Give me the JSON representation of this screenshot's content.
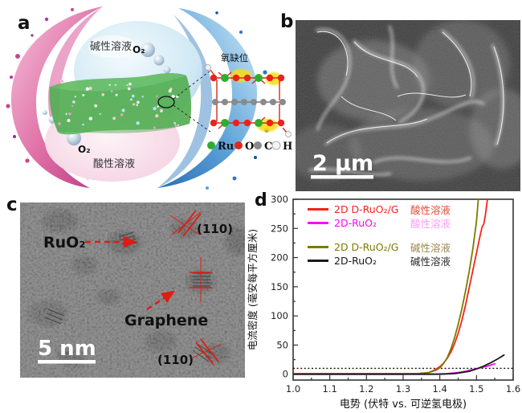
{
  "figure": {
    "panel_a": {
      "label": "a",
      "alkaline_solution": "碱性溶液",
      "acidic_solution": "酸性溶液",
      "o2_top": "O₂",
      "o2_bottom": "O₂",
      "inset_title": "氧缺位",
      "atom_legend": [
        {
          "symbol": "Ru",
          "color": "#2eae2e"
        },
        {
          "symbol": "O",
          "color": "#e8231c"
        },
        {
          "symbol": "C",
          "color": "#8a8a8a"
        },
        {
          "symbol": "H",
          "color": "#f5f5f5"
        }
      ]
    },
    "panel_b": {
      "label": "b",
      "scale_bar_text": "2 μm"
    },
    "panel_c": {
      "label": "c",
      "ruo2_label": "RuO₂",
      "graphene_label": "Graphene",
      "plane_top": "(110)",
      "plane_bottom": "(110)",
      "scale_bar_text": "5 nm"
    },
    "panel_d": {
      "label": "d"
    }
  },
  "chart_data": {
    "type": "line",
    "title": "",
    "xlabel": "电势 (伏特 vs. 可逆氢电极)",
    "ylabel": "电流密度 (毫安每平方厘米)",
    "xlim": [
      1.0,
      1.6
    ],
    "ylim": [
      -10,
      300
    ],
    "xticks": [
      1.0,
      1.1,
      1.2,
      1.3,
      1.4,
      1.5,
      1.6
    ],
    "yticks": [
      0,
      50,
      100,
      150,
      200,
      250,
      300
    ],
    "x_minor_step": 0.05,
    "y_minor_step": 25,
    "grid": false,
    "legend_position": "top-left",
    "reference_line_y": 10,
    "series": [
      {
        "name": "2D D-RuO₂/G",
        "solution": "酸性溶液",
        "color": "#f7231a",
        "name_color": "#f7231a",
        "solution_color": "#e84a3a",
        "x": [
          1.0,
          1.05,
          1.1,
          1.15,
          1.2,
          1.25,
          1.3,
          1.34,
          1.37,
          1.385,
          1.4,
          1.41,
          1.42,
          1.43,
          1.44,
          1.45,
          1.46,
          1.47,
          1.48,
          1.49,
          1.5,
          1.51,
          1.515,
          1.52,
          1.524,
          1.53
        ],
        "y": [
          1,
          1,
          1,
          1,
          1,
          1,
          1,
          1,
          3,
          7,
          13,
          19,
          27,
          38,
          52,
          70,
          92,
          118,
          148,
          178,
          208,
          238,
          252,
          258,
          272,
          300
        ]
      },
      {
        "name": "2D-RuO₂",
        "solution": "酸性溶液",
        "color": "#ff00ff",
        "name_color": "#ff00ff",
        "solution_color": "#fb9df1",
        "x": [
          1.0,
          1.1,
          1.2,
          1.3,
          1.38,
          1.42,
          1.45,
          1.47,
          1.49,
          1.51,
          1.53,
          1.55
        ],
        "y": [
          0,
          0,
          0,
          0,
          0,
          1,
          3,
          5,
          8,
          11,
          14,
          18
        ]
      },
      {
        "name": "2D D-RuO₂/G",
        "solution": "碱性溶液",
        "color": "#7b7b00",
        "name_color": "#7b7b00",
        "solution_color": "#9a8a52",
        "x": [
          1.0,
          1.1,
          1.2,
          1.3,
          1.34,
          1.37,
          1.39,
          1.4,
          1.41,
          1.42,
          1.43,
          1.44,
          1.45,
          1.46,
          1.47,
          1.48,
          1.49,
          1.5,
          1.505
        ],
        "y": [
          0,
          0,
          0,
          0,
          1,
          3,
          7,
          11,
          18,
          28,
          43,
          62,
          85,
          112,
          142,
          176,
          215,
          262,
          300
        ]
      },
      {
        "name": "2D-RuO₂",
        "solution": "碱性溶液",
        "color": "#1a1a1a",
        "name_color": "#1a1a1a",
        "solution_color": "#2b2b2b",
        "x": [
          1.0,
          1.1,
          1.2,
          1.3,
          1.4,
          1.44,
          1.46,
          1.48,
          1.5,
          1.52,
          1.54,
          1.56,
          1.575
        ],
        "y": [
          0,
          0,
          0,
          0,
          0,
          1,
          3,
          5,
          9,
          14,
          20,
          27,
          33
        ]
      }
    ]
  }
}
